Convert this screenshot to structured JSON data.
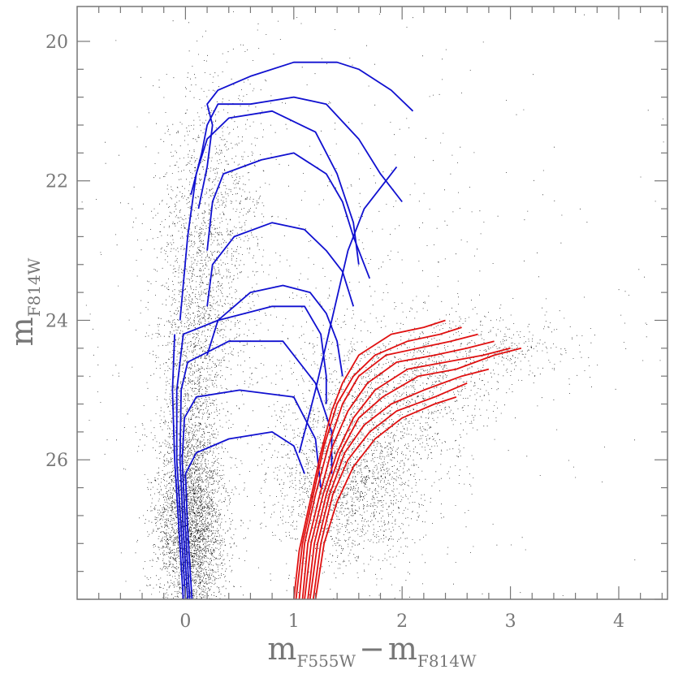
{
  "chart_data": {
    "type": "scatter",
    "title": "",
    "xlabel": {
      "main": "m",
      "sub1": "F555W",
      "minus": "−",
      "main2": "m",
      "sub2": "F814W"
    },
    "ylabel": {
      "main": "m",
      "sub": "F814W"
    },
    "xlim": [
      -1.0,
      4.45
    ],
    "ylim": [
      28.0,
      19.5
    ],
    "y_inverted": true,
    "x_ticks": [
      0,
      1,
      2,
      3,
      4
    ],
    "x_tick_labels": [
      "0",
      "1",
      "2",
      "3",
      "4"
    ],
    "y_ticks": [
      20,
      22,
      24,
      26
    ],
    "y_tick_labels": [
      "20",
      "22",
      "24",
      "26"
    ],
    "x_minor_step": 0.2,
    "y_minor_step": 0.4,
    "grid": false,
    "colors": {
      "points": "#000000",
      "blue_tracks": "#1010d0",
      "red_tracks": "#e01010",
      "axis": "#777777"
    },
    "point_clouds": [
      {
        "name": "blue-main-sequence",
        "cx": 0.05,
        "cy": 27.0,
        "sx": 0.16,
        "sy": 0.7,
        "n": 3200
      },
      {
        "name": "blue-plume",
        "cx": 0.05,
        "cy": 25.2,
        "sx": 0.14,
        "sy": 1.4,
        "n": 1800
      },
      {
        "name": "upper-plume",
        "cx": 0.25,
        "cy": 22.8,
        "sx": 0.25,
        "sy": 1.2,
        "n": 1300
      },
      {
        "name": "red-clump",
        "cx": 1.5,
        "cy": 26.3,
        "sx": 0.35,
        "sy": 0.6,
        "n": 2000
      },
      {
        "name": "red-giant-branch",
        "cx": 2.0,
        "cy": 25.0,
        "sx": 0.45,
        "sy": 0.5,
        "n": 1100
      },
      {
        "name": "agb-tail",
        "cx": 2.9,
        "cy": 24.4,
        "sx": 0.45,
        "sy": 0.25,
        "n": 350
      },
      {
        "name": "field-background",
        "cx": 1.2,
        "cy": 24.0,
        "sx": 1.3,
        "sy": 2.2,
        "n": 900
      }
    ],
    "series": [
      {
        "color": "blue",
        "points": [
          [
            -0.02,
            28.0
          ],
          [
            -0.06,
            27.0
          ],
          [
            -0.1,
            26.0
          ],
          [
            -0.12,
            25.0
          ],
          [
            -0.1,
            24.2
          ]
        ]
      },
      {
        "color": "blue",
        "points": [
          [
            0.0,
            28.0
          ],
          [
            -0.04,
            27.0
          ],
          [
            -0.08,
            26.0
          ],
          [
            -0.08,
            25.0
          ],
          [
            -0.02,
            24.2
          ],
          [
            0.3,
            24.0
          ],
          [
            0.8,
            23.8
          ],
          [
            1.1,
            23.8
          ],
          [
            1.25,
            24.2
          ],
          [
            1.3,
            24.8
          ],
          [
            1.3,
            25.2
          ]
        ]
      },
      {
        "color": "blue",
        "points": [
          [
            0.02,
            28.0
          ],
          [
            -0.02,
            27.0
          ],
          [
            -0.05,
            26.0
          ],
          [
            -0.04,
            25.0
          ],
          [
            0.02,
            24.6
          ],
          [
            0.4,
            24.3
          ],
          [
            0.9,
            24.3
          ],
          [
            1.2,
            24.9
          ],
          [
            1.35,
            25.6
          ],
          [
            1.35,
            26.2
          ]
        ]
      },
      {
        "color": "blue",
        "points": [
          [
            0.04,
            28.0
          ],
          [
            0.0,
            27.0
          ],
          [
            -0.03,
            26.0
          ],
          [
            -0.01,
            25.4
          ],
          [
            0.1,
            25.1
          ],
          [
            0.5,
            25.0
          ],
          [
            1.0,
            25.1
          ],
          [
            1.2,
            25.7
          ],
          [
            1.25,
            26.4
          ]
        ]
      },
      {
        "color": "blue",
        "points": [
          [
            0.06,
            28.0
          ],
          [
            0.02,
            27.0
          ],
          [
            0.0,
            26.2
          ],
          [
            0.1,
            25.9
          ],
          [
            0.4,
            25.7
          ],
          [
            0.8,
            25.6
          ],
          [
            1.0,
            25.8
          ],
          [
            1.1,
            26.2
          ]
        ]
      },
      {
        "color": "blue",
        "points": [
          [
            -0.05,
            24.0
          ],
          [
            0.02,
            22.8
          ],
          [
            0.1,
            21.9
          ],
          [
            0.2,
            21.4
          ],
          [
            0.4,
            21.1
          ],
          [
            0.8,
            21.0
          ],
          [
            1.2,
            21.3
          ],
          [
            1.4,
            21.9
          ],
          [
            1.55,
            22.6
          ],
          [
            1.6,
            23.2
          ]
        ]
      },
      {
        "color": "blue",
        "points": [
          [
            0.05,
            22.2
          ],
          [
            0.15,
            21.6
          ],
          [
            0.2,
            21.2
          ],
          [
            0.3,
            20.9
          ],
          [
            0.6,
            20.9
          ],
          [
            1.0,
            20.8
          ],
          [
            1.3,
            20.9
          ],
          [
            1.6,
            21.4
          ],
          [
            1.8,
            21.9
          ],
          [
            2.0,
            22.3
          ]
        ]
      },
      {
        "color": "blue",
        "points": [
          [
            0.12,
            22.4
          ],
          [
            0.2,
            21.8
          ],
          [
            0.25,
            21.2
          ],
          [
            0.2,
            20.9
          ],
          [
            0.3,
            20.7
          ],
          [
            0.6,
            20.5
          ],
          [
            1.0,
            20.3
          ],
          [
            1.4,
            20.3
          ],
          [
            1.6,
            20.4
          ],
          [
            1.9,
            20.7
          ],
          [
            2.1,
            21.0
          ]
        ]
      },
      {
        "color": "blue",
        "points": [
          [
            0.2,
            23.0
          ],
          [
            0.25,
            22.3
          ],
          [
            0.35,
            21.9
          ],
          [
            0.7,
            21.7
          ],
          [
            1.0,
            21.6
          ],
          [
            1.3,
            21.9
          ],
          [
            1.45,
            22.3
          ],
          [
            1.55,
            22.8
          ],
          [
            1.7,
            23.4
          ]
        ]
      },
      {
        "color": "blue",
        "points": [
          [
            0.2,
            23.8
          ],
          [
            0.25,
            23.2
          ],
          [
            0.45,
            22.8
          ],
          [
            0.8,
            22.6
          ],
          [
            1.1,
            22.7
          ],
          [
            1.3,
            23.0
          ],
          [
            1.45,
            23.3
          ],
          [
            1.55,
            23.8
          ]
        ]
      },
      {
        "color": "blue",
        "points": [
          [
            0.2,
            24.5
          ],
          [
            0.3,
            24.0
          ],
          [
            0.6,
            23.6
          ],
          [
            0.9,
            23.5
          ],
          [
            1.15,
            23.6
          ],
          [
            1.3,
            23.9
          ],
          [
            1.4,
            24.3
          ],
          [
            1.45,
            24.8
          ]
        ]
      },
      {
        "color": "blue",
        "points": [
          [
            1.05,
            25.9
          ],
          [
            1.2,
            25.0
          ],
          [
            1.35,
            24.0
          ],
          [
            1.5,
            23.0
          ],
          [
            1.65,
            22.4
          ],
          [
            1.85,
            22.0
          ],
          [
            1.95,
            21.8
          ]
        ]
      },
      {
        "color": "red",
        "points": [
          [
            1.0,
            28.0
          ],
          [
            1.05,
            27.3
          ],
          [
            1.15,
            26.6
          ],
          [
            1.25,
            25.9
          ],
          [
            1.35,
            25.3
          ],
          [
            1.45,
            24.9
          ],
          [
            1.6,
            24.5
          ],
          [
            1.9,
            24.2
          ],
          [
            2.2,
            24.1
          ],
          [
            2.4,
            24.0
          ]
        ]
      },
      {
        "color": "red",
        "points": [
          [
            1.02,
            28.0
          ],
          [
            1.08,
            27.2
          ],
          [
            1.18,
            26.5
          ],
          [
            1.28,
            25.8
          ],
          [
            1.4,
            25.2
          ],
          [
            1.55,
            24.8
          ],
          [
            1.75,
            24.5
          ],
          [
            2.05,
            24.3
          ],
          [
            2.35,
            24.2
          ],
          [
            2.55,
            24.1
          ]
        ]
      },
      {
        "color": "red",
        "points": [
          [
            1.05,
            28.0
          ],
          [
            1.1,
            27.2
          ],
          [
            1.2,
            26.5
          ],
          [
            1.32,
            25.8
          ],
          [
            1.45,
            25.2
          ],
          [
            1.6,
            24.8
          ],
          [
            1.85,
            24.5
          ],
          [
            2.15,
            24.4
          ],
          [
            2.45,
            24.3
          ],
          [
            2.7,
            24.2
          ]
        ]
      },
      {
        "color": "red",
        "points": [
          [
            1.08,
            28.0
          ],
          [
            1.13,
            27.2
          ],
          [
            1.24,
            26.5
          ],
          [
            1.36,
            25.8
          ],
          [
            1.5,
            25.3
          ],
          [
            1.68,
            24.9
          ],
          [
            1.95,
            24.6
          ],
          [
            2.3,
            24.5
          ],
          [
            2.6,
            24.4
          ],
          [
            2.85,
            24.3
          ]
        ]
      },
      {
        "color": "red",
        "points": [
          [
            1.1,
            28.0
          ],
          [
            1.16,
            27.2
          ],
          [
            1.27,
            26.5
          ],
          [
            1.4,
            25.9
          ],
          [
            1.55,
            25.4
          ],
          [
            1.75,
            25.0
          ],
          [
            2.05,
            24.7
          ],
          [
            2.4,
            24.6
          ],
          [
            2.75,
            24.5
          ],
          [
            3.0,
            24.4
          ]
        ]
      },
      {
        "color": "red",
        "points": [
          [
            1.13,
            28.0
          ],
          [
            1.19,
            27.2
          ],
          [
            1.3,
            26.5
          ],
          [
            1.43,
            25.9
          ],
          [
            1.6,
            25.4
          ],
          [
            1.82,
            25.1
          ],
          [
            2.15,
            24.8
          ],
          [
            2.5,
            24.7
          ],
          [
            2.85,
            24.5
          ],
          [
            3.1,
            24.4
          ]
        ]
      },
      {
        "color": "red",
        "points": [
          [
            1.15,
            28.0
          ],
          [
            1.22,
            27.2
          ],
          [
            1.33,
            26.5
          ],
          [
            1.47,
            25.9
          ],
          [
            1.65,
            25.5
          ],
          [
            1.9,
            25.2
          ],
          [
            2.2,
            25.0
          ],
          [
            2.55,
            24.8
          ],
          [
            2.8,
            24.7
          ]
        ]
      },
      {
        "color": "red",
        "points": [
          [
            1.18,
            28.0
          ],
          [
            1.25,
            27.2
          ],
          [
            1.36,
            26.5
          ],
          [
            1.5,
            26.0
          ],
          [
            1.7,
            25.6
          ],
          [
            1.95,
            25.3
          ],
          [
            2.3,
            25.1
          ],
          [
            2.6,
            24.9
          ]
        ]
      },
      {
        "color": "red",
        "points": [
          [
            1.2,
            28.0
          ],
          [
            1.28,
            27.2
          ],
          [
            1.4,
            26.6
          ],
          [
            1.55,
            26.1
          ],
          [
            1.75,
            25.7
          ],
          [
            2.0,
            25.4
          ],
          [
            2.3,
            25.2
          ],
          [
            2.5,
            25.1
          ]
        ]
      }
    ]
  }
}
